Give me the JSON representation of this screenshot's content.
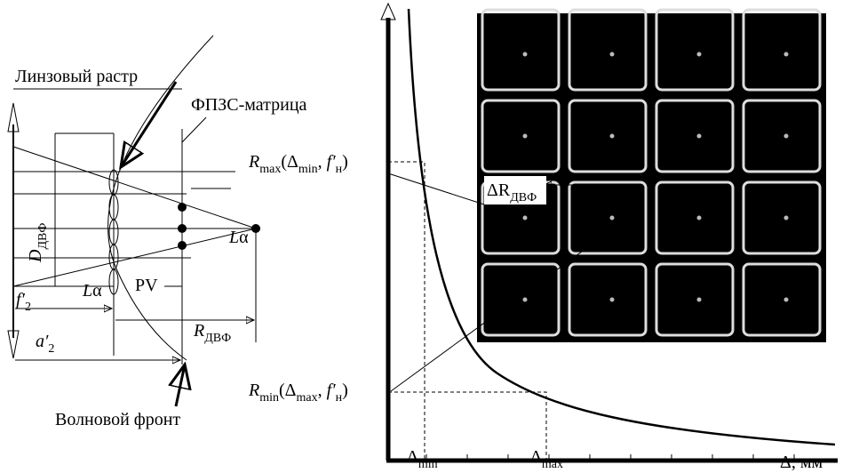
{
  "left": {
    "lens_raster": "Линзовый растр",
    "matrix": "ФПЗС-матрица",
    "d_dvf": [
      "D",
      "ДВФ"
    ],
    "l_alpha_right": [
      "L",
      "α"
    ],
    "l_alpha_left": [
      "L",
      "α"
    ],
    "pv": "PV",
    "f2": [
      "f′",
      "2"
    ],
    "a2": [
      "a′",
      "2"
    ],
    "r_dvf": [
      "R",
      "ДВФ"
    ],
    "wavefront": "Волновой фронт"
  },
  "right": {
    "r_max": [
      "R",
      "max",
      "(Δ",
      "min",
      ", ",
      "f′",
      "н",
      ")"
    ],
    "delta_r": [
      "ΔR",
      "ДВФ"
    ],
    "r_min": [
      "R",
      "min",
      "(Δ",
      "max",
      ", ",
      "f′",
      "н",
      ")"
    ],
    "delta_min": [
      "Δ",
      "min"
    ],
    "delta_max": [
      "Δ",
      "max"
    ],
    "x_axis": "Δ, мм"
  }
}
